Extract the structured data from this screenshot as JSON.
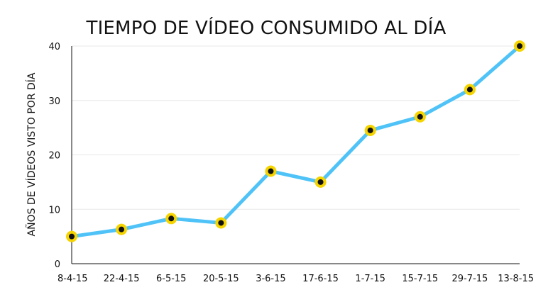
{
  "chart_data": {
    "type": "line",
    "title": "TIEMPO DE VÍDEO CONSUMIDO AL DÍA",
    "xlabel": "",
    "ylabel": "AÑOS DE VÍDEOS VISTO POR DÍA",
    "categories": [
      "8-4-15",
      "22-4-15",
      "6-5-15",
      "20-5-15",
      "3-6-15",
      "17-6-15",
      "1-7-15",
      "15-7-15",
      "29-7-15",
      "13-8-15"
    ],
    "series": [
      {
        "values": [
          5,
          6.3,
          8.3,
          7.5,
          17,
          15,
          24.5,
          27,
          32,
          40
        ]
      }
    ],
    "ylim": [
      0,
      40
    ],
    "yticks": [
      0,
      10,
      20,
      30,
      40
    ],
    "grid": true,
    "legend": "none",
    "colors": {
      "line": "#4FC3F7",
      "marker_fill": "#111111",
      "marker_stroke": "#F5D400",
      "grid": "#e8e8e8",
      "axis": "#111111"
    }
  }
}
